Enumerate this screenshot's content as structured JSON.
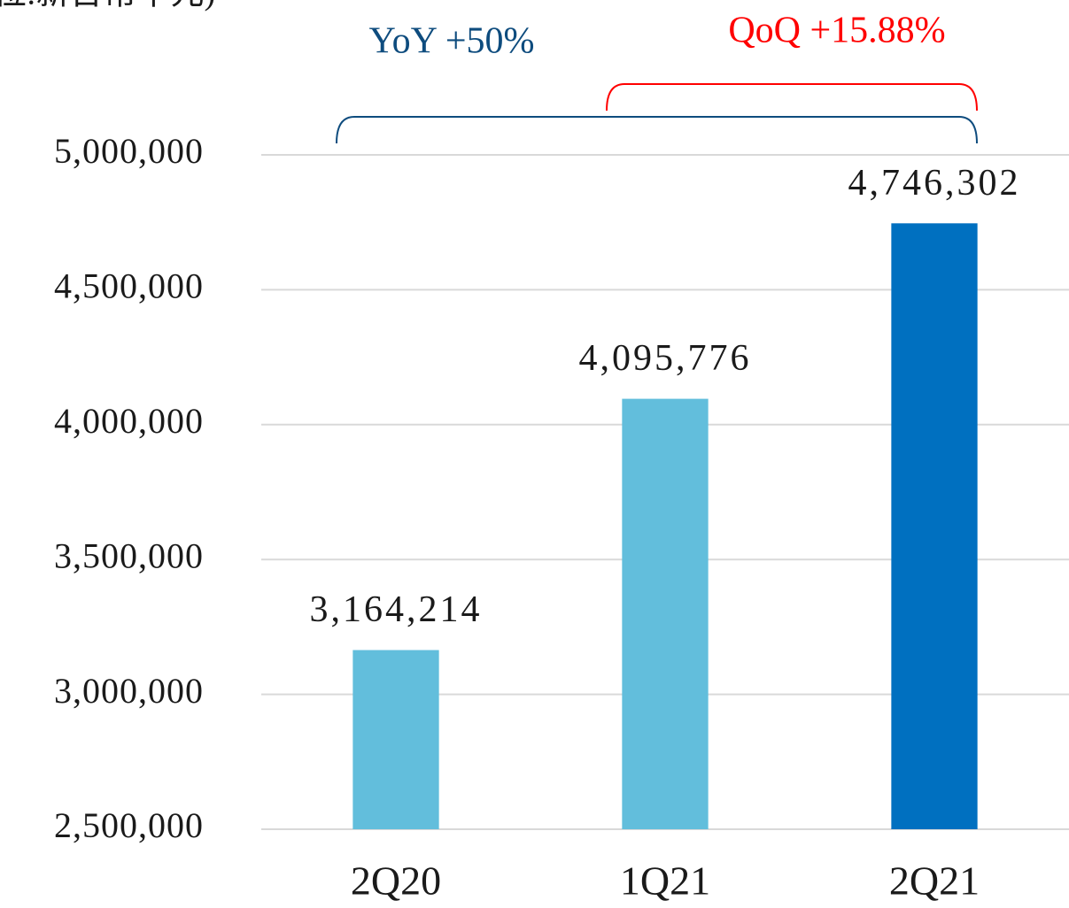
{
  "chart_data": {
    "type": "bar",
    "subtitle": "位:新台幣千元)",
    "categories": [
      "2Q20",
      "1Q21",
      "2Q21"
    ],
    "values": [
      3164214,
      4095776,
      4746302
    ],
    "value_labels": [
      "3,164,214",
      "4,095,776",
      "4,746,302"
    ],
    "colors": [
      "#62bedc",
      "#62bedc",
      "#0070c0"
    ],
    "ylim": [
      2500000,
      5000000
    ],
    "yticks": [
      {
        "value": 2500000,
        "label": "2,500,000"
      },
      {
        "value": 3000000,
        "label": "3,000,000"
      },
      {
        "value": 3500000,
        "label": "3,500,000"
      },
      {
        "value": 4000000,
        "label": "4,000,000"
      },
      {
        "value": 4500000,
        "label": "4,500,000"
      },
      {
        "value": 5000000,
        "label": "5,000,000"
      }
    ],
    "grid": true,
    "annotations": [
      {
        "text": "YoY +50%",
        "color": "#0e4c7e"
      },
      {
        "text": "QoQ +15.88%",
        "color": "#ff0000"
      }
    ]
  }
}
